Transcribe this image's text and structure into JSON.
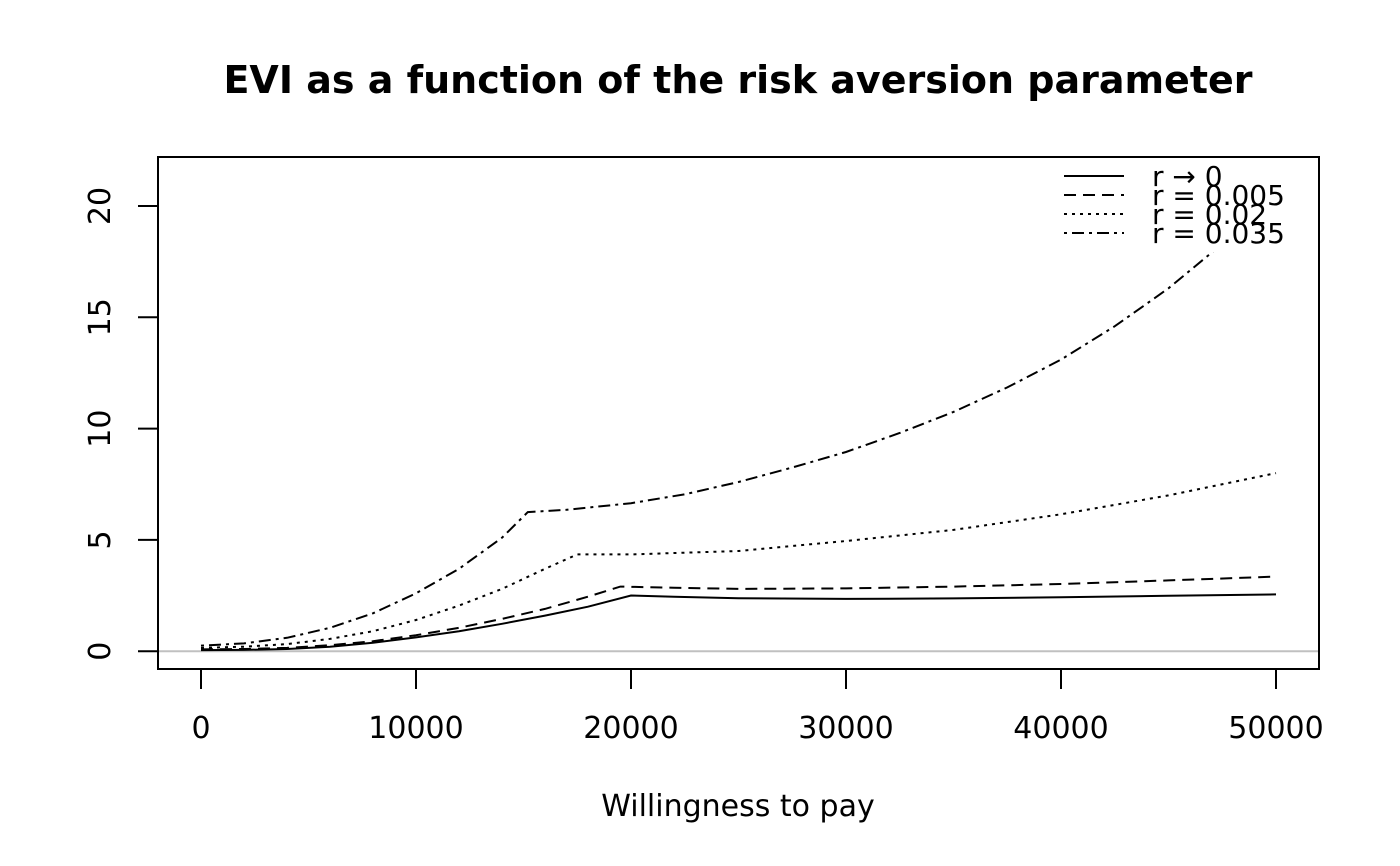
{
  "chart_data": {
    "type": "line",
    "title": "EVI as a function of the risk aversion parameter",
    "xlabel": "Willingness to pay",
    "ylabel": "",
    "xlim": [
      -2000,
      52000
    ],
    "ylim": [
      -0.8,
      22.2
    ],
    "xticks": [
      0,
      10000,
      20000,
      30000,
      40000,
      50000
    ],
    "xtick_labels": [
      "0",
      "10000",
      "20000",
      "30000",
      "40000",
      "50000"
    ],
    "yticks": [
      0,
      5,
      10,
      15,
      20
    ],
    "ytick_labels": [
      "0",
      "5",
      "10",
      "15",
      "20"
    ],
    "reference_line": {
      "y": 0,
      "color": "#c0c0c0"
    },
    "grid": false,
    "legend_position": "top-right",
    "series": [
      {
        "name": "r → 0",
        "dash": "solid",
        "x": [
          0,
          2000,
          4000,
          6000,
          8000,
          10000,
          12000,
          14000,
          16000,
          18000,
          20000,
          22000,
          25000,
          30000,
          35000,
          40000,
          45000,
          50000
        ],
        "y": [
          0.05,
          0.06,
          0.1,
          0.2,
          0.38,
          0.62,
          0.9,
          1.23,
          1.6,
          2.0,
          2.5,
          2.45,
          2.38,
          2.35,
          2.37,
          2.42,
          2.49,
          2.55
        ]
      },
      {
        "name": "r = 0.005",
        "dash": "dashed",
        "x": [
          0,
          2000,
          4000,
          6000,
          8000,
          10000,
          12000,
          14000,
          16000,
          18000,
          19500,
          22000,
          25000,
          30000,
          35000,
          40000,
          45000,
          50000
        ],
        "y": [
          0.08,
          0.1,
          0.15,
          0.27,
          0.45,
          0.72,
          1.05,
          1.45,
          1.9,
          2.45,
          2.9,
          2.85,
          2.8,
          2.82,
          2.9,
          3.02,
          3.18,
          3.35
        ]
      },
      {
        "name": "r = 0.02",
        "dash": "dotted",
        "x": [
          0,
          2000,
          4000,
          6000,
          8000,
          10000,
          12000,
          14000,
          16000,
          17500,
          20000,
          25000,
          30000,
          35000,
          40000,
          45000,
          50000
        ],
        "y": [
          0.15,
          0.2,
          0.32,
          0.55,
          0.9,
          1.4,
          2.05,
          2.8,
          3.7,
          4.35,
          4.35,
          4.5,
          4.95,
          5.45,
          6.15,
          7.0,
          8.0
        ]
      },
      {
        "name": "r = 0.035",
        "dash": "dotdash",
        "x": [
          0,
          2000,
          4000,
          6000,
          8000,
          10000,
          12000,
          14000,
          15200,
          17000,
          20000,
          22500,
          25000,
          27500,
          30000,
          32500,
          35000,
          37500,
          40000,
          42500,
          45000,
          47500,
          50000
        ],
        "y": [
          0.25,
          0.35,
          0.6,
          1.05,
          1.7,
          2.6,
          3.7,
          5.1,
          6.25,
          6.35,
          6.65,
          7.05,
          7.6,
          8.25,
          8.95,
          9.8,
          10.75,
          11.85,
          13.1,
          14.6,
          16.3,
          18.3,
          20.5
        ]
      }
    ]
  }
}
